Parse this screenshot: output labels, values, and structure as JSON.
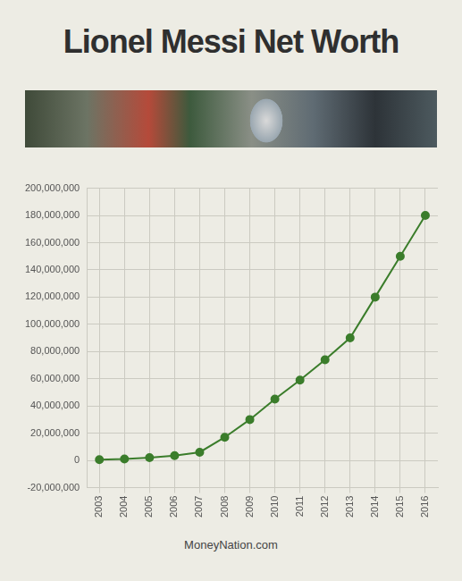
{
  "chart_data": {
    "type": "line",
    "title": "Lionel Messi Net Worth",
    "source": "MoneyNation.com",
    "categories": [
      "2003",
      "2004",
      "2005",
      "2006",
      "2007",
      "2008",
      "2009",
      "2010",
      "2011",
      "2012",
      "2013",
      "2014",
      "2015",
      "2016"
    ],
    "values": [
      500000,
      1000000,
      2000000,
      3500000,
      6000000,
      17000000,
      30000000,
      45000000,
      59000000,
      74000000,
      90000000,
      120000000,
      150000000,
      180000000
    ],
    "color": "#3b7d2b",
    "marker": "circle",
    "line_style": "solid",
    "ylim": [
      -20000000,
      200000000
    ],
    "yticks": [
      {
        "value": -20000000,
        "label": "-20,000,000"
      },
      0,
      {
        "value": 20000000,
        "label": "20,000,000"
      },
      {
        "value": 40000000,
        "label": "40,000,000"
      },
      {
        "value": 60000000,
        "label": "60,000,000"
      },
      {
        "value": 80000000,
        "label": "80,000,000"
      },
      {
        "value": 100000000,
        "label": "100,000,000"
      },
      {
        "value": 120000000,
        "label": "120,000,000"
      },
      {
        "value": 140000000,
        "label": "140,000,000"
      },
      {
        "value": 160000000,
        "label": "160,000,000"
      },
      {
        "value": 180000000,
        "label": "180,000,000"
      },
      {
        "value": 200000000,
        "label": "200,000,000"
      }
    ],
    "grid": true
  }
}
